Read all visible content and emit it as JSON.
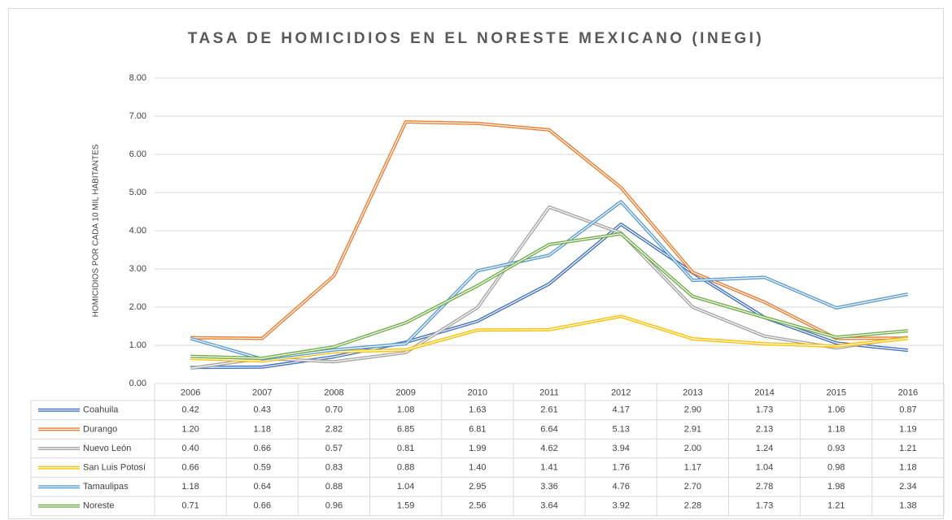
{
  "chart_data": {
    "type": "line",
    "title": "TASA DE HOMICIDIOS EN EL NORESTE MEXICANO (INEGI)",
    "y_label": "HOMICIDIOS POR CADA 10 MIL HABITANTES",
    "categories": [
      "2006",
      "2007",
      "2008",
      "2009",
      "2010",
      "2011",
      "2012",
      "2013",
      "2014",
      "2015",
      "2016"
    ],
    "ylim": [
      0,
      8
    ],
    "yticks": [
      {
        "value": 0,
        "label": "0.00"
      },
      {
        "value": 1,
        "label": "1.00"
      },
      {
        "value": 2,
        "label": "2.00"
      },
      {
        "value": 3,
        "label": "3.00"
      },
      {
        "value": 4,
        "label": "4.00"
      },
      {
        "value": 5,
        "label": "5.00"
      },
      {
        "value": 6,
        "label": "6.00"
      },
      {
        "value": 7,
        "label": "7.00"
      },
      {
        "value": 8,
        "label": "8.00"
      }
    ],
    "grid": true,
    "series": [
      {
        "name": "Coahuila",
        "color": "#4472c4",
        "values": [
          0.42,
          0.43,
          0.7,
          1.08,
          1.63,
          2.61,
          4.17,
          2.9,
          1.73,
          1.06,
          0.87
        ],
        "value_labels": [
          "0.42",
          "0.43",
          "0.70",
          "1.08",
          "1.63",
          "2.61",
          "4.17",
          "2.90",
          "1.73",
          "1.06",
          "0.87"
        ]
      },
      {
        "name": "Durango",
        "color": "#ed7d31",
        "values": [
          1.2,
          1.18,
          2.82,
          6.85,
          6.81,
          6.64,
          5.13,
          2.91,
          2.13,
          1.18,
          1.19
        ],
        "value_labels": [
          "1.20",
          "1.18",
          "2.82",
          "6.85",
          "6.81",
          "6.64",
          "5.13",
          "2.91",
          "2.13",
          "1.18",
          "1.19"
        ]
      },
      {
        "name": "Nuevo León",
        "color": "#a5a5a5",
        "values": [
          0.4,
          0.66,
          0.57,
          0.81,
          1.99,
          4.62,
          3.94,
          2.0,
          1.24,
          0.93,
          1.21
        ],
        "value_labels": [
          "0.40",
          "0.66",
          "0.57",
          "0.81",
          "1.99",
          "4.62",
          "3.94",
          "2.00",
          "1.24",
          "0.93",
          "1.21"
        ]
      },
      {
        "name": "San Luis Potosí",
        "color": "#ffc000",
        "values": [
          0.66,
          0.59,
          0.83,
          0.88,
          1.4,
          1.41,
          1.76,
          1.17,
          1.04,
          0.98,
          1.18
        ],
        "value_labels": [
          "0.66",
          "0.59",
          "0.83",
          "0.88",
          "1.40",
          "1.41",
          "1.76",
          "1.17",
          "1.04",
          "0.98",
          "1.18"
        ]
      },
      {
        "name": "Tamaulipas",
        "color": "#5b9bd5",
        "values": [
          1.18,
          0.64,
          0.88,
          1.04,
          2.95,
          3.36,
          4.76,
          2.7,
          2.78,
          1.98,
          2.34
        ],
        "value_labels": [
          "1.18",
          "0.64",
          "0.88",
          "1.04",
          "2.95",
          "3.36",
          "4.76",
          "2.70",
          "2.78",
          "1.98",
          "2.34"
        ]
      },
      {
        "name": "Noreste",
        "color": "#70ad47",
        "values": [
          0.71,
          0.66,
          0.96,
          1.59,
          2.56,
          3.64,
          3.92,
          2.28,
          1.73,
          1.21,
          1.38
        ],
        "value_labels": [
          "0.71",
          "0.66",
          "0.96",
          "1.59",
          "2.56",
          "3.64",
          "3.92",
          "2.28",
          "1.73",
          "1.21",
          "1.38"
        ]
      }
    ]
  }
}
